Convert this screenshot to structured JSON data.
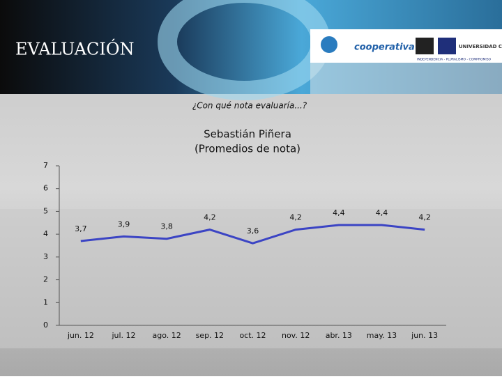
{
  "header": {
    "title": "EVALUACIÓN",
    "logo_left": "cooperativa",
    "logo_right": "UNIVERSIDAD CENTRAL",
    "motto": "INDEPENDENCIA - PLURALISMO - COMPROMISO"
  },
  "question": "¿Con qué nota evaluaría...?",
  "chart_data": {
    "type": "line",
    "title": "Sebastián Piñera",
    "subtitle": "(Promedios de nota)",
    "categories": [
      "jun. 12",
      "jul. 12",
      "ago. 12",
      "sep. 12",
      "oct. 12",
      "nov. 12",
      "abr. 13",
      "may. 13",
      "jun. 13"
    ],
    "values": [
      3.7,
      3.9,
      3.8,
      4.2,
      3.6,
      4.2,
      4.4,
      4.4,
      4.2
    ],
    "value_labels": [
      "3,7",
      "3,9",
      "3,8",
      "4,2",
      "3,6",
      "4,2",
      "4,4",
      "4,4",
      "4,2"
    ],
    "color": "#3b44c4",
    "ylim": [
      0,
      7
    ],
    "yticks": [
      0,
      1,
      2,
      3,
      4,
      5,
      6,
      7
    ]
  }
}
